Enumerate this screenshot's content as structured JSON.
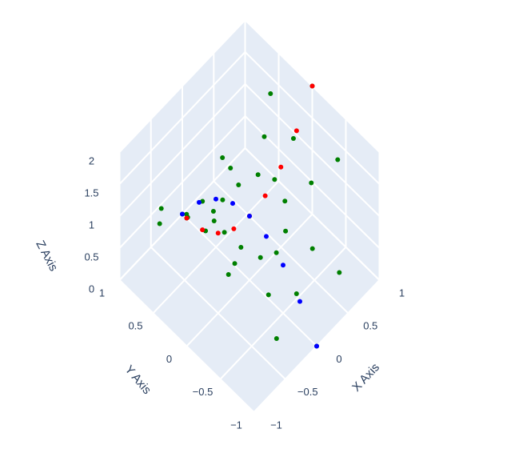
{
  "chart_data": {
    "type": "scatter3d",
    "x_label": "X Axis",
    "y_label": "Y Axis",
    "z_label": "Z Axis",
    "xlim": [
      -1,
      1
    ],
    "ylim": [
      -1,
      1
    ],
    "zlim": [
      0,
      2
    ],
    "xticks": [
      {
        "value": -1,
        "label": "−1"
      },
      {
        "value": -0.5,
        "label": "−0.5"
      },
      0,
      0.5,
      1
    ],
    "yticks": [
      {
        "value": -1,
        "label": "−1"
      },
      {
        "value": -0.5,
        "label": "−0.5"
      },
      0,
      0.5,
      1
    ],
    "zticks": [
      0,
      0.5,
      1,
      1.5,
      2
    ],
    "grid": true,
    "series": [
      {
        "color": "#008000",
        "x": [
          0,
          0.4,
          0.35,
          0.2,
          0,
          -0.2,
          -0.35,
          -0.4,
          -0.35,
          -0.2,
          0,
          0.2,
          0.35,
          0.7,
          0.61,
          0.35,
          0,
          -0.35,
          -0.61,
          -0.7,
          -0.61,
          -0.35,
          0,
          0.35,
          0.61,
          1,
          0.87,
          0.5,
          0,
          -0.5,
          -0.87,
          -1,
          -0.87,
          -0.5,
          0,
          0.5,
          0.87
        ],
        "y": [
          0,
          0,
          0.2,
          0.35,
          0.4,
          0.35,
          0.2,
          0,
          -0.2,
          -0.35,
          -0.4,
          -0.35,
          -0.2,
          0,
          0.35,
          0.61,
          0.7,
          0.61,
          0.35,
          0,
          -0.35,
          -0.61,
          -0.7,
          -0.61,
          -0.35,
          0,
          0.5,
          0.87,
          1,
          0.87,
          0.5,
          0,
          -0.5,
          -0.87,
          -1,
          -0.87,
          -0.5
        ],
        "z": [
          1,
          1.16,
          1.08,
          0.92,
          0.84,
          0.92,
          1.08,
          1.16,
          1.08,
          0.92,
          0.84,
          0.92,
          1.08,
          1.49,
          1.25,
          0.76,
          0.51,
          0.76,
          1.25,
          1.49,
          1.25,
          0.76,
          0.51,
          0.76,
          1.25,
          2,
          1.5,
          0.5,
          0,
          0.5,
          1.5,
          2,
          1.5,
          0.5,
          0,
          0.5,
          1.5
        ]
      },
      {
        "color": "#ff0000",
        "x": [
          -1,
          -0.75,
          -0.5,
          -0.25,
          0,
          0.25,
          0.5,
          0.75,
          1
        ],
        "y": [
          0,
          0,
          0,
          0,
          0,
          0,
          0,
          0,
          0
        ],
        "z": [
          2,
          1.56,
          1.25,
          1.06,
          1,
          1.06,
          1.25,
          1.56,
          2
        ]
      },
      {
        "color": "#0000ff",
        "x": [
          0,
          0,
          0,
          0,
          0,
          0,
          0,
          0,
          0
        ],
        "y": [
          -1,
          -0.75,
          -0.5,
          -0.25,
          0,
          0.25,
          0.5,
          0.75,
          1
        ],
        "z": [
          0,
          0.44,
          0.75,
          0.94,
          1,
          0.94,
          0.75,
          0.44,
          0
        ]
      }
    ]
  }
}
